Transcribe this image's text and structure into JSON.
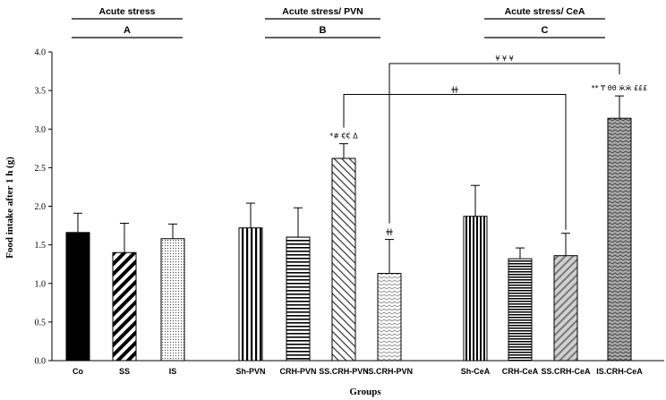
{
  "chart_data": {
    "type": "bar",
    "ylabel": "Food intake after 1 h (g)",
    "xlabel": "Groups",
    "ylim": [
      0,
      4.0
    ],
    "yticks": [
      "0.0",
      "0.5",
      "1.0",
      "1.5",
      "2.0",
      "2.5",
      "3.0",
      "3.5",
      "4.0"
    ],
    "groups": [
      {
        "title": "Acute stress",
        "letter": "A",
        "bars": [
          {
            "label": "Co",
            "value": 1.66,
            "error": 0.25,
            "pattern": "solid",
            "annotation": ""
          },
          {
            "label": "SS",
            "value": 1.4,
            "error": 0.38,
            "pattern": "diag-thick",
            "annotation": ""
          },
          {
            "label": "IS",
            "value": 1.58,
            "error": 0.19,
            "pattern": "dots",
            "annotation": ""
          }
        ]
      },
      {
        "title": "Acute stress/ PVN",
        "letter": "B",
        "bars": [
          {
            "label": "Sh-PVN",
            "value": 1.72,
            "error": 0.32,
            "pattern": "vlines",
            "annotation": ""
          },
          {
            "label": "CRH-PVN",
            "value": 1.6,
            "error": 0.38,
            "pattern": "hlines",
            "annotation": ""
          },
          {
            "label": "SS.CRH-PVN",
            "value": 2.62,
            "error": 0.19,
            "pattern": "diag-light",
            "annotation": "*# €€ Δ"
          },
          {
            "label": "IS.CRH-PVN",
            "value": 1.13,
            "error": 0.44,
            "pattern": "zigzag",
            "annotation": "ǂǂ"
          }
        ]
      },
      {
        "title": "Acute stress/ CeA",
        "letter": "C",
        "bars": [
          {
            "label": "Sh-CeA",
            "value": 1.87,
            "error": 0.4,
            "pattern": "vlines-dense",
            "annotation": ""
          },
          {
            "label": "CRH-CeA",
            "value": 1.32,
            "error": 0.14,
            "pattern": "hlines-dense",
            "annotation": ""
          },
          {
            "label": "SS.CRH-CeA",
            "value": 1.36,
            "error": 0.29,
            "pattern": "diag-grey",
            "annotation": ""
          },
          {
            "label": "IS.CRH-CeA",
            "value": 3.14,
            "error": 0.29,
            "pattern": "zigzag-dark",
            "annotation": "** ₸ θθ ӝӝ £££"
          }
        ]
      }
    ],
    "comparisons": [
      {
        "from": "IS.CRH-PVN",
        "to": "IS.CRH-CeA",
        "label": "¥ ¥ ¥",
        "y": 3.85
      },
      {
        "from": "SS.CRH-PVN",
        "to": "SS.CRH-CeA",
        "label": "ǂǂ",
        "y": 3.45
      }
    ]
  }
}
